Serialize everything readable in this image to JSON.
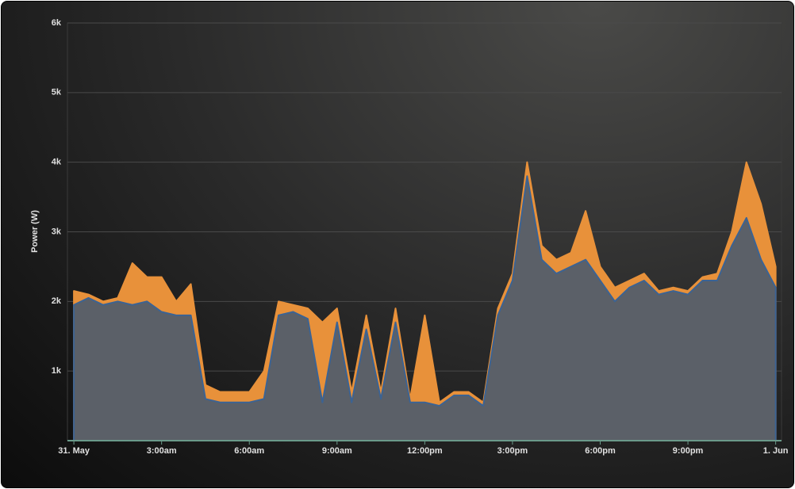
{
  "chart_data": {
    "type": "area",
    "y_label": "Power (W)",
    "x": [
      0,
      0.5,
      1,
      1.5,
      2,
      2.5,
      3,
      3.5,
      4,
      4.5,
      5,
      5.5,
      6,
      6.5,
      7,
      7.5,
      8,
      8.5,
      9,
      9.5,
      10,
      10.5,
      11,
      11.5,
      12,
      12.5,
      13,
      13.5,
      14,
      14.5,
      15,
      15.5,
      16,
      16.5,
      17,
      17.5,
      18,
      18.5,
      19,
      19.5,
      20,
      20.5,
      21,
      21.5,
      22,
      22.5,
      23,
      23.5,
      24
    ],
    "series": [
      {
        "color": "#e8913a",
        "values": [
          2150,
          2100,
          2000,
          2050,
          2550,
          2350,
          2350,
          2000,
          2250,
          800,
          700,
          700,
          700,
          1000,
          2000,
          1950,
          1900,
          1700,
          1900,
          700,
          1800,
          700,
          1900,
          600,
          1800,
          550,
          700,
          700,
          550,
          1900,
          2400,
          4000,
          2800,
          2600,
          2700,
          3300,
          2500,
          2200,
          2300,
          2400,
          2150,
          2200,
          2150,
          2350,
          2400,
          3000,
          4000,
          3400,
          2500
        ]
      },
      {
        "color": "#3b6394",
        "values": [
          1950,
          2050,
          1950,
          2000,
          1950,
          2000,
          1850,
          1800,
          1800,
          600,
          550,
          550,
          550,
          600,
          1800,
          1850,
          1750,
          550,
          1700,
          550,
          1600,
          600,
          1700,
          550,
          550,
          500,
          650,
          650,
          500,
          1800,
          2300,
          3800,
          2600,
          2400,
          2500,
          2600,
          2300,
          2000,
          2200,
          2300,
          2100,
          2150,
          2100,
          2300,
          2300,
          2800,
          3200,
          2600,
          2200
        ]
      }
    ],
    "xlim": [
      -0.22,
      24.2
    ],
    "xticks": [
      {
        "value": 0,
        "label": "31. May"
      },
      {
        "value": 3,
        "label": "3:00am"
      },
      {
        "value": 6,
        "label": "6:00am"
      },
      {
        "value": 9,
        "label": "9:00am"
      },
      {
        "value": 12,
        "label": "12:00pm"
      },
      {
        "value": 15,
        "label": "3:00pm"
      },
      {
        "value": 18,
        "label": "6:00pm"
      },
      {
        "value": 21,
        "label": "9:00pm"
      },
      {
        "value": 24,
        "label": "1. Jun"
      }
    ],
    "ylim": [
      0,
      6000
    ],
    "yticks": [
      {
        "value": 1000,
        "label": "1k"
      },
      {
        "value": 2000,
        "label": "2k"
      },
      {
        "value": 3000,
        "label": "3k"
      },
      {
        "value": 4000,
        "label": "4k"
      },
      {
        "value": 5000,
        "label": "5k"
      },
      {
        "value": 6000,
        "label": "6k"
      }
    ],
    "grid": true
  }
}
